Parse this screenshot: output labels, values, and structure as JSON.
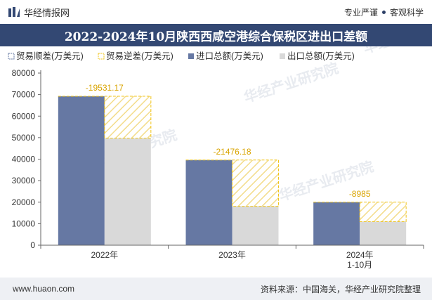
{
  "header": {
    "brand": "华经情报网",
    "tag1": "专业严谨",
    "tag2": "客观科学"
  },
  "title": "2022-2024年10月陕西西咸空港综合保税区进出口差额",
  "footer": {
    "website": "www.huaon.com",
    "source": "资料来源：中国海关，华经产业研究院整理"
  },
  "watermark": "华经产业研究院",
  "colors": {
    "import": "#6678a3",
    "export": "#d9d9d9",
    "deficit": "#f0c419",
    "title_bg": "#334873"
  },
  "chart_data": {
    "type": "bar",
    "categories": [
      "2022年",
      "2023年",
      "2024年\n1-10月"
    ],
    "series": [
      {
        "name": "进口总额(万美元)",
        "values": [
          69200,
          39600,
          20000
        ]
      },
      {
        "name": "出口总额(万美元)",
        "values": [
          49700,
          18100,
          11000
        ]
      },
      {
        "name": "贸易逆差(万美元)",
        "values": [
          -19531.17,
          -21476.18,
          -8985
        ]
      }
    ],
    "legend": [
      {
        "name": "贸易顺差(万美元)",
        "icon": "outline-box-blue"
      },
      {
        "name": "贸易逆差(万美元)",
        "icon": "dashed-box-yellow"
      },
      {
        "name": "进口总额(万美元)",
        "icon": "solid-box-blue"
      },
      {
        "name": "出口总额(万美元)",
        "icon": "solid-box-gray"
      }
    ],
    "data_labels": [
      "-19531.17",
      "-21476.18",
      "-8985"
    ],
    "yticks": [
      0,
      10000,
      20000,
      30000,
      40000,
      50000,
      60000,
      70000,
      80000
    ],
    "ylim": [
      0,
      80000
    ],
    "legend_position": "top-left",
    "grid": false
  }
}
